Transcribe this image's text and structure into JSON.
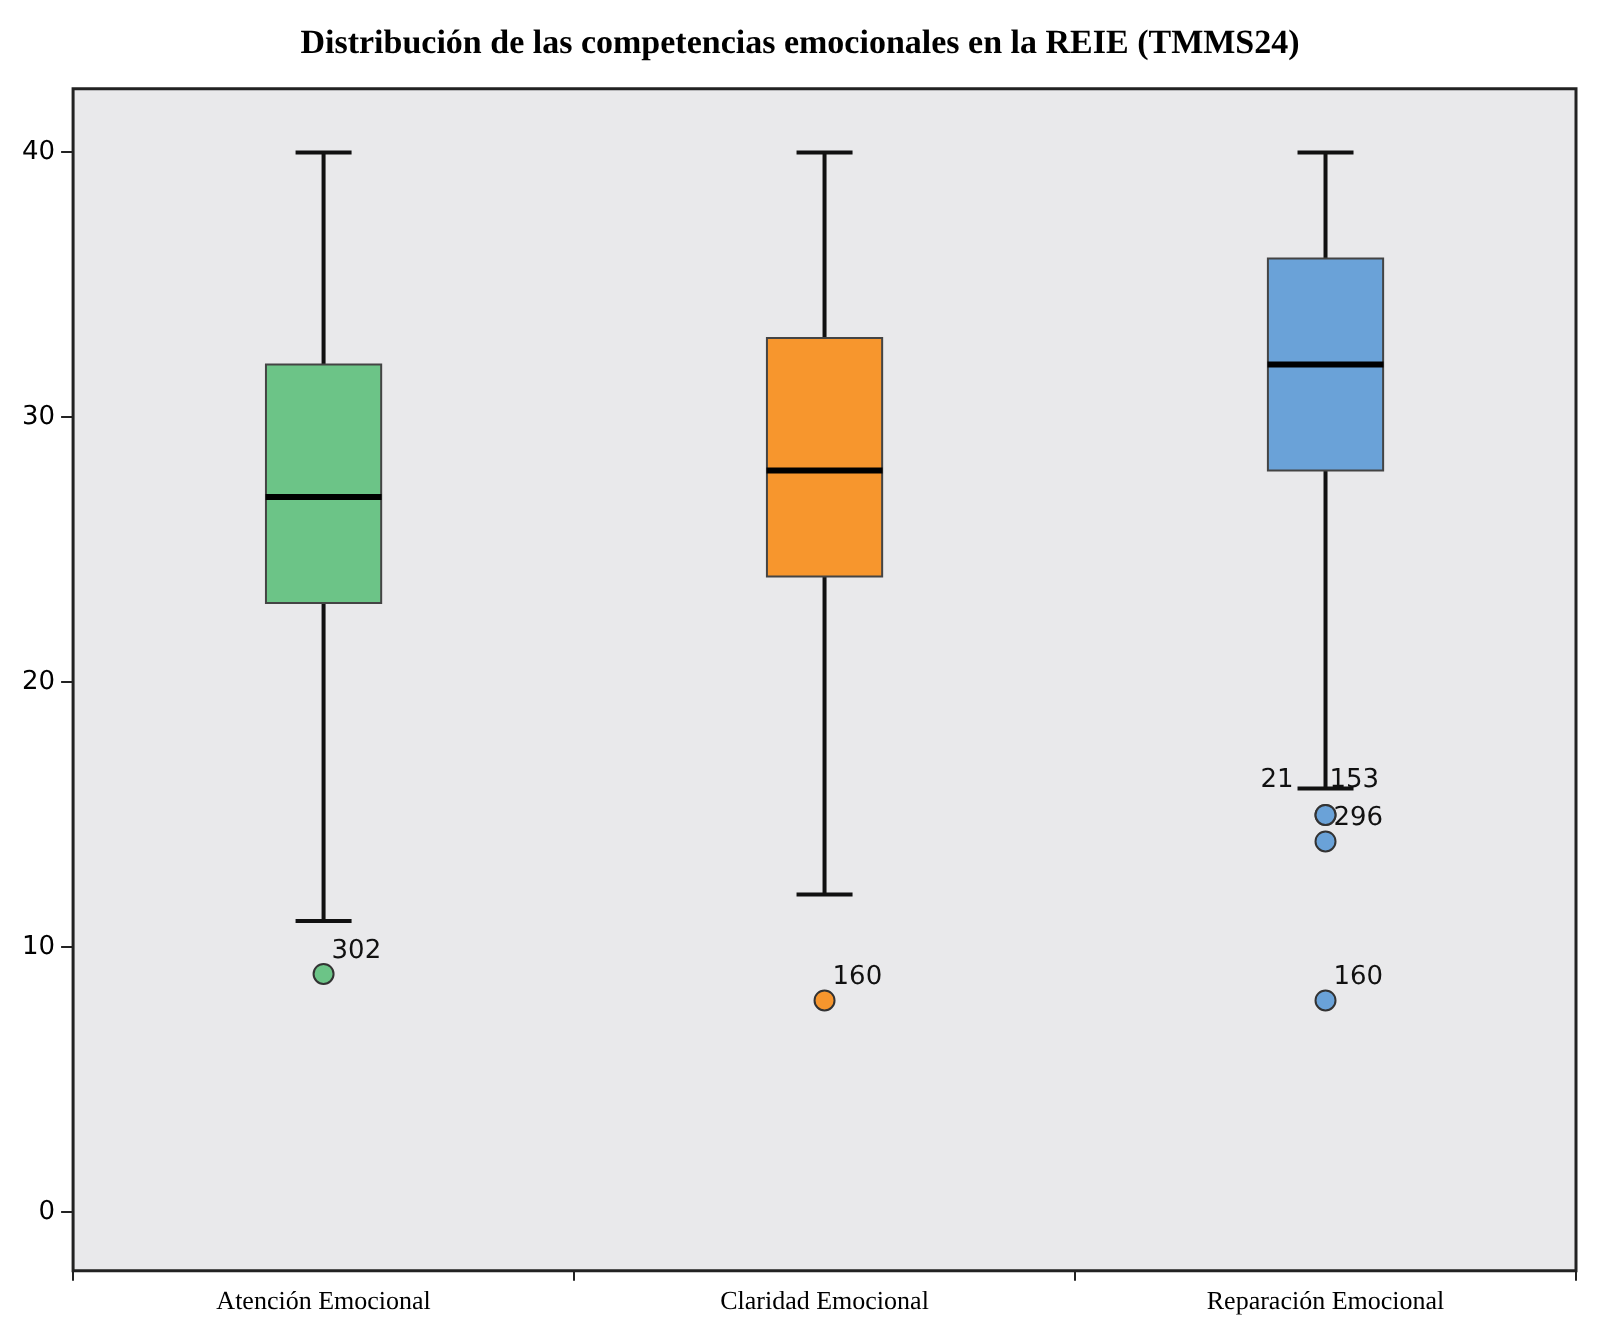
{
  "chart_data": {
    "type": "box",
    "title": "Distribución de las competencias emocionales en la REIE (TMMS24)",
    "categories": [
      "Atención Emocional",
      "Claridad Emocional",
      "Reparación Emocional"
    ],
    "colors": [
      "#6cc487",
      "#f7962d",
      "#6aa2d8"
    ],
    "boxes": [
      {
        "low": 11,
        "q1": 23,
        "median": 27,
        "q3": 32,
        "high": 40,
        "outliers": [
          9
        ]
      },
      {
        "low": 12,
        "q1": 24,
        "median": 28,
        "q3": 33,
        "high": 40,
        "outliers": [
          8
        ]
      },
      {
        "low": 16,
        "q1": 28,
        "median": 32,
        "q3": 36,
        "high": 40,
        "outliers": [
          15,
          15,
          14,
          8
        ]
      }
    ],
    "ylim": [
      -2.2,
      42.4
    ],
    "yticks": [
      0,
      10,
      20,
      30,
      40
    ],
    "grid": false,
    "legend": false,
    "annotations": [
      "302",
      "160",
      "21",
      "153",
      "296",
      "160"
    ]
  }
}
